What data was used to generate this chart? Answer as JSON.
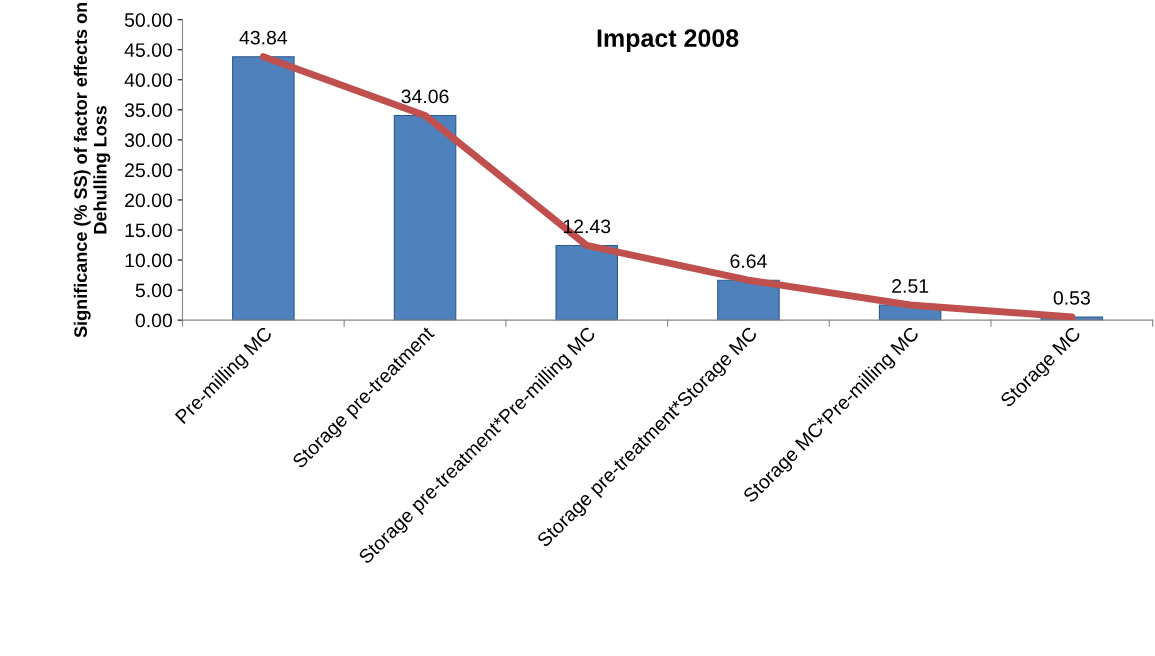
{
  "chart_data": {
    "type": "bar",
    "title": "Impact 2008",
    "ylabel": "Significance (% SS) of factor effects on\nDehulling Loss",
    "categories": [
      "Pre-milling MC",
      "Storage pre-treatment",
      "Storage pre-treatment*Pre-milling MC",
      "Storage pre-treatment*Storage MC",
      "Storage MC*Pre-milling MC",
      "Storage MC"
    ],
    "series": [
      {
        "color": "#4f81bd",
        "values": [
          43.84,
          34.06,
          12.43,
          6.64,
          2.51,
          0.53
        ],
        "value_labels": [
          "43.84",
          "34.06",
          "12.43",
          "6.64",
          "2.51",
          "0.53"
        ]
      },
      {
        "type": "line",
        "color": "#c0504d",
        "values": [
          43.84,
          34.06,
          12.43,
          6.64,
          2.51,
          0.53
        ]
      }
    ],
    "ylim": [
      0,
      50
    ],
    "yticks": [
      {
        "value": 0,
        "label": "0.00"
      },
      {
        "value": 5,
        "label": "5.00"
      },
      {
        "value": 10,
        "label": "10.00"
      },
      {
        "value": 15,
        "label": "15.00"
      },
      {
        "value": 20,
        "label": "20.00"
      },
      {
        "value": 25,
        "label": "25.00"
      },
      {
        "value": 30,
        "label": "30.00"
      },
      {
        "value": 35,
        "label": "35.00"
      },
      {
        "value": 40,
        "label": "40.00"
      },
      {
        "value": 45,
        "label": "45.00"
      },
      {
        "value": 50,
        "label": "50.00"
      }
    ],
    "grid": false,
    "legend": false,
    "marker": "none",
    "line_style": "solid"
  }
}
